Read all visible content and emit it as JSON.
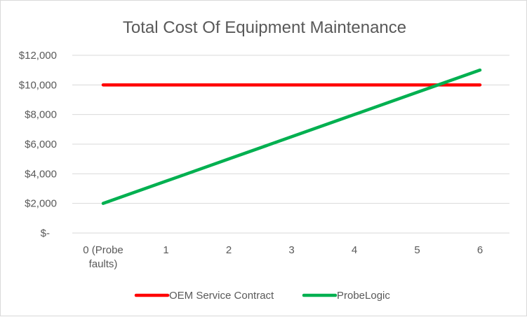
{
  "chart_data": {
    "type": "line",
    "title": "Total Cost Of Equipment Maintenance",
    "xlabel": "",
    "ylabel": "",
    "categories": [
      "0 (Probe faults)",
      "1",
      "2",
      "3",
      "4",
      "5",
      "6"
    ],
    "category_lines": [
      [
        "0 (Probe",
        "faults)"
      ],
      [
        "1"
      ],
      [
        "2"
      ],
      [
        "3"
      ],
      [
        "4"
      ],
      [
        "5"
      ],
      [
        "6"
      ]
    ],
    "ylim": [
      0,
      12000
    ],
    "yticks": [
      0,
      2000,
      4000,
      6000,
      8000,
      10000,
      12000
    ],
    "ytick_labels": [
      "$-",
      "$2,000",
      "$4,000",
      "$6,000",
      "$8,000",
      "$10,000",
      "$12,000"
    ],
    "grid": true,
    "legend_position": "bottom",
    "series": [
      {
        "name": "OEM Service Contract",
        "color": "#ff0000",
        "values": [
          10000,
          10000,
          10000,
          10000,
          10000,
          10000,
          10000
        ]
      },
      {
        "name": "ProbeLogic",
        "color": "#00b050",
        "values": [
          2000,
          3500,
          5000,
          6500,
          8000,
          9500,
          11000
        ]
      }
    ]
  }
}
